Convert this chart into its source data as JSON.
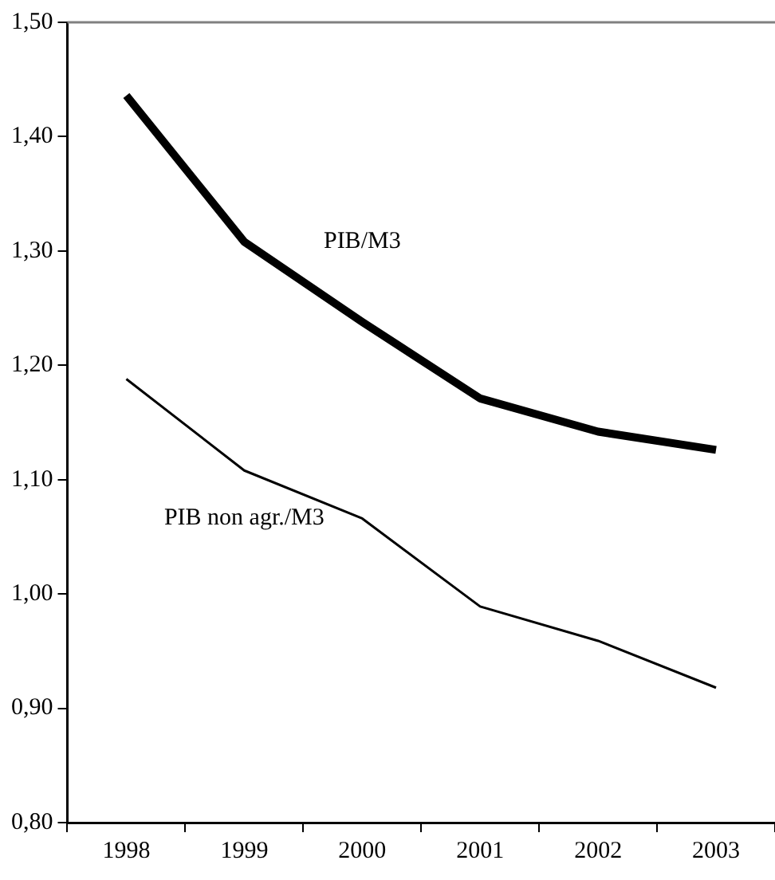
{
  "chart_data": {
    "type": "line",
    "categories": [
      "1998",
      "1999",
      "2000",
      "2001",
      "2002",
      "2003"
    ],
    "series": [
      {
        "name": "PIB/M3",
        "color": "#000000",
        "values": [
          1.436,
          1.308,
          1.238,
          1.171,
          1.142,
          1.126
        ]
      },
      {
        "name": "PIB non agr./M3",
        "color": "#000000",
        "values": [
          1.188,
          1.108,
          1.066,
          0.989,
          0.959,
          0.918
        ]
      }
    ],
    "ylim": [
      0.8,
      1.5
    ],
    "yticks": [
      {
        "value": 0.8,
        "label": "0,80"
      },
      {
        "value": 0.9,
        "label": "0,90"
      },
      {
        "value": 1.0,
        "label": "1,00"
      },
      {
        "value": 1.1,
        "label": "1,10"
      },
      {
        "value": 1.2,
        "label": "1,20"
      },
      {
        "value": 1.3,
        "label": "1,30"
      },
      {
        "value": 1.4,
        "label": "1,40"
      },
      {
        "value": 1.5,
        "label": "1,50"
      }
    ],
    "grid": false,
    "legend": false,
    "marker": "none",
    "line_style": "solid"
  }
}
